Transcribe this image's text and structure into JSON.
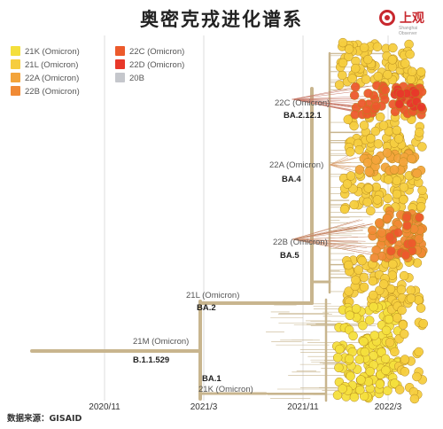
{
  "title": "奥密克戎进化谱系",
  "logo": {
    "text": "上观",
    "subtitle": "Shanghai Observer"
  },
  "source": "数据来源：GISAID",
  "colors": {
    "trunk": "#c8b58e",
    "tick": "#dddddd",
    "text": "#333333"
  },
  "chart_data": {
    "type": "scatter",
    "title": "奥密克戎进化谱系",
    "xlabel": "",
    "ylabel": "",
    "x_ticks": [
      "2020/11",
      "2021/3",
      "2021/11",
      "2022/3"
    ],
    "legend": [
      {
        "name": "21K (Omicron)",
        "color": "#f4df3c"
      },
      {
        "name": "21L (Omicron)",
        "color": "#f6cd3f"
      },
      {
        "name": "22A (Omicron)",
        "color": "#f3a43b"
      },
      {
        "name": "22B (Omicron)",
        "color": "#f08a35"
      },
      {
        "name": "22C (Omicron)",
        "color": "#ec5a2c"
      },
      {
        "name": "22D (Omicron)",
        "color": "#e8382a"
      },
      {
        "name": "20B",
        "color": "#c5c7cc"
      }
    ],
    "legend_position": "top-left",
    "clade_labels": [
      {
        "clade": "21M (Omicron)",
        "lineage": "B.1.1.529"
      },
      {
        "clade": "21L (Omicron)",
        "lineage": "BA.2"
      },
      {
        "clade": "21K (Omicron)",
        "lineage": "BA.1"
      },
      {
        "clade": "22A (Omicron)",
        "lineage": "BA.4"
      },
      {
        "clade": "22B (Omicron)",
        "lineage": "BA.5"
      },
      {
        "clade": "22C (Omicron)",
        "lineage": "BA.2.12.1"
      }
    ],
    "series": [
      {
        "name": "21K (Omicron)",
        "lineage": "BA.1",
        "date_range": [
          "2021-10",
          "2022-03"
        ]
      },
      {
        "name": "21L (Omicron)",
        "lineage": "BA.2",
        "date_range": [
          "2021-11",
          "2022-05"
        ]
      },
      {
        "name": "22A (Omicron)",
        "lineage": "BA.4",
        "date_range": [
          "2022-01",
          "2022-05"
        ]
      },
      {
        "name": "22B (Omicron)",
        "lineage": "BA.5",
        "date_range": [
          "2022-01",
          "2022-05"
        ]
      },
      {
        "name": "22C (Omicron)",
        "lineage": "BA.2.12.1",
        "date_range": [
          "2022-01",
          "2022-05"
        ]
      },
      {
        "name": "22D (Omicron)",
        "date_range": [
          "2022-03",
          "2022-05"
        ]
      },
      {
        "name": "20B",
        "date_range": [
          "2020-08",
          "2020-11"
        ]
      }
    ],
    "grid": false
  }
}
